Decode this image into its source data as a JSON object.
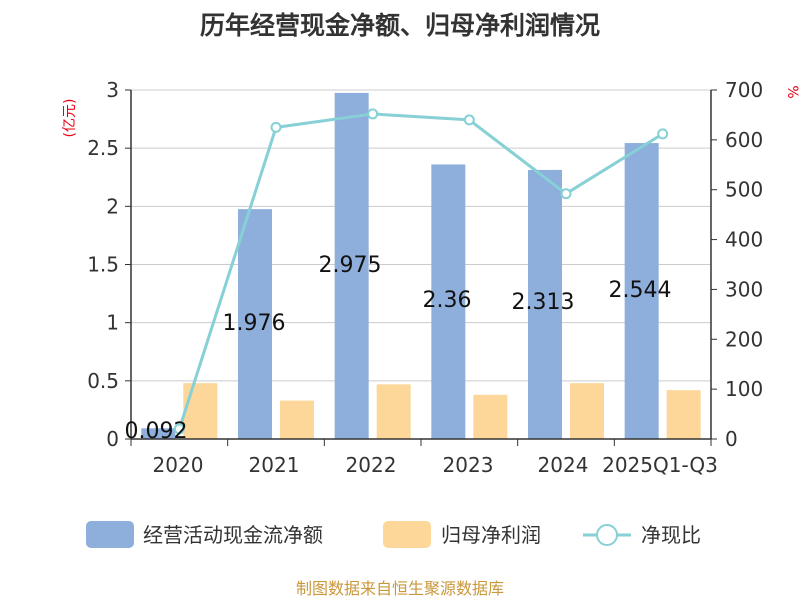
{
  "chart_data": {
    "type": "bar",
    "title": "历年经营现金净额、归母净利润情况",
    "ylabel": "(亿元)",
    "y2label": "%",
    "categories": [
      "2020",
      "2021",
      "2022",
      "2023",
      "2024",
      "2025Q1-Q3"
    ],
    "ylim": [
      0,
      3
    ],
    "y2lim": [
      0,
      700
    ],
    "yticks": [
      "0",
      "0.5",
      "1",
      "1.5",
      "2",
      "2.5",
      "3"
    ],
    "y2ticks": [
      "0",
      "100",
      "200",
      "300",
      "400",
      "500",
      "600",
      "700"
    ],
    "grid": true,
    "legend_position": "bottom",
    "series": [
      {
        "name": "经营活动现金流净额",
        "type": "bar",
        "axis": "left",
        "values": [
          0.092,
          1.976,
          2.975,
          2.36,
          2.313,
          2.544
        ],
        "labels": [
          "0.092",
          "1.976",
          "2.975",
          "2.36",
          "2.313",
          "2.544"
        ],
        "color": "#8eaedb"
      },
      {
        "name": "归母净利润",
        "type": "bar",
        "axis": "left",
        "values": [
          0.48,
          0.33,
          0.47,
          0.38,
          0.48,
          0.42
        ],
        "color": "#fdd799"
      },
      {
        "name": "净现比",
        "type": "line",
        "axis": "right",
        "values": [
          20,
          625,
          652,
          640,
          492,
          612
        ],
        "color": "#86d0d6"
      }
    ],
    "source": "制图数据来自恒生聚源数据库"
  }
}
